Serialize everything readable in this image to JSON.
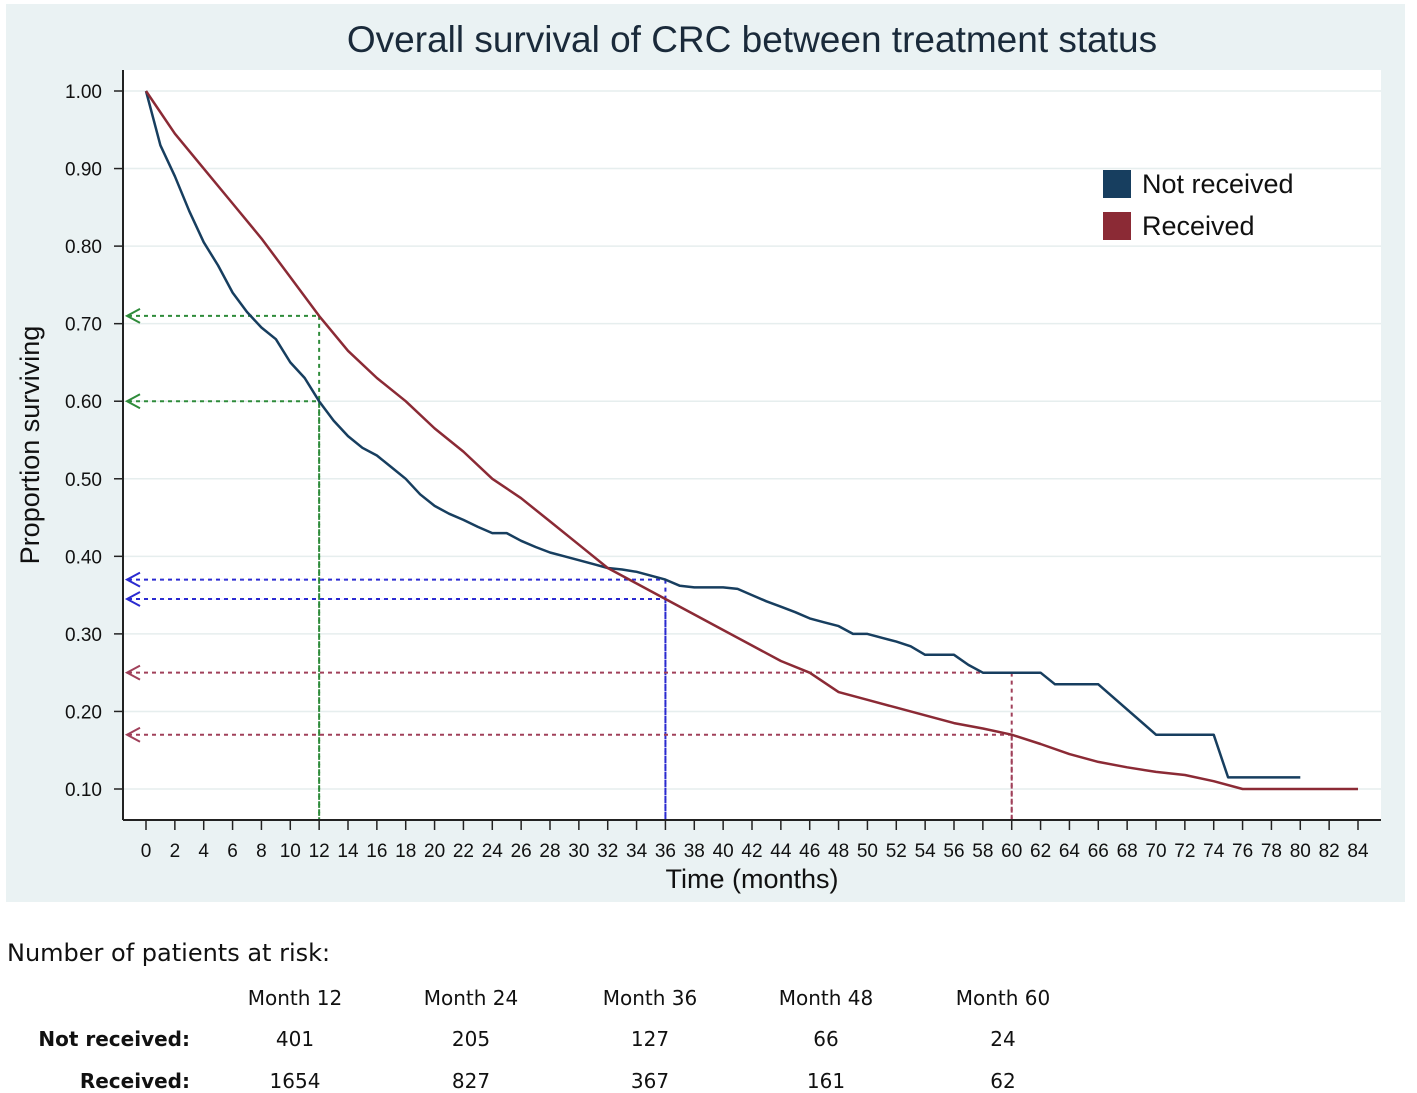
{
  "chart_data": {
    "type": "line",
    "title": "Overall survival of CRC between treatment status",
    "xlabel": "Time (months)",
    "ylabel": "Proportion surviving",
    "xlim": [
      0,
      84
    ],
    "ylim": [
      0.1,
      1.0
    ],
    "x_ticks": [
      0,
      2,
      4,
      6,
      8,
      10,
      12,
      14,
      16,
      18,
      20,
      22,
      24,
      26,
      28,
      30,
      32,
      34,
      36,
      38,
      40,
      42,
      44,
      46,
      48,
      50,
      52,
      54,
      56,
      58,
      60,
      62,
      64,
      66,
      68,
      70,
      72,
      74,
      76,
      78,
      80,
      82,
      84
    ],
    "y_ticks": [
      1.0,
      0.9,
      0.8,
      0.7,
      0.6,
      0.5,
      0.4,
      0.3,
      0.2,
      0.1
    ],
    "y_tick_labels": [
      "1.00",
      "0.90",
      "0.80",
      "0.70",
      "0.60",
      "0.50",
      "0.40",
      "0.30",
      "0.20",
      "0.10"
    ],
    "legend_position": "top-right",
    "series": [
      {
        "name": "Not received",
        "color": "#173e5f",
        "points": [
          [
            0,
            1.0
          ],
          [
            1,
            0.93
          ],
          [
            2,
            0.89
          ],
          [
            3,
            0.845
          ],
          [
            4,
            0.805
          ],
          [
            5,
            0.775
          ],
          [
            6,
            0.74
          ],
          [
            7,
            0.715
          ],
          [
            8,
            0.695
          ],
          [
            9,
            0.68
          ],
          [
            10,
            0.65
          ],
          [
            11,
            0.63
          ],
          [
            12,
            0.6
          ],
          [
            13,
            0.575
          ],
          [
            14,
            0.555
          ],
          [
            15,
            0.54
          ],
          [
            16,
            0.53
          ],
          [
            17,
            0.515
          ],
          [
            18,
            0.5
          ],
          [
            19,
            0.48
          ],
          [
            20,
            0.465
          ],
          [
            21,
            0.455
          ],
          [
            22,
            0.447
          ],
          [
            23,
            0.438
          ],
          [
            24,
            0.43
          ],
          [
            25,
            0.43
          ],
          [
            26,
            0.42
          ],
          [
            27,
            0.412
          ],
          [
            28,
            0.405
          ],
          [
            29,
            0.4
          ],
          [
            30,
            0.395
          ],
          [
            31,
            0.39
          ],
          [
            32,
            0.385
          ],
          [
            33,
            0.383
          ],
          [
            34,
            0.38
          ],
          [
            35,
            0.375
          ],
          [
            36,
            0.37
          ],
          [
            37,
            0.362
          ],
          [
            38,
            0.36
          ],
          [
            40,
            0.36
          ],
          [
            41,
            0.358
          ],
          [
            42,
            0.35
          ],
          [
            43,
            0.342
          ],
          [
            44,
            0.335
          ],
          [
            45,
            0.328
          ],
          [
            46,
            0.32
          ],
          [
            47,
            0.315
          ],
          [
            48,
            0.31
          ],
          [
            49,
            0.3
          ],
          [
            50,
            0.3
          ],
          [
            51,
            0.295
          ],
          [
            52,
            0.29
          ],
          [
            53,
            0.284
          ],
          [
            54,
            0.273
          ],
          [
            55,
            0.273
          ],
          [
            56,
            0.273
          ],
          [
            57,
            0.26
          ],
          [
            58,
            0.25
          ],
          [
            62,
            0.25
          ],
          [
            63,
            0.235
          ],
          [
            66,
            0.235
          ],
          [
            70,
            0.17
          ],
          [
            74,
            0.17
          ],
          [
            75,
            0.115
          ],
          [
            80,
            0.115
          ]
        ]
      },
      {
        "name": "Received",
        "color": "#8b2a35",
        "points": [
          [
            0,
            1.0
          ],
          [
            2,
            0.945
          ],
          [
            4,
            0.9
          ],
          [
            6,
            0.855
          ],
          [
            8,
            0.81
          ],
          [
            10,
            0.76
          ],
          [
            12,
            0.71
          ],
          [
            14,
            0.665
          ],
          [
            16,
            0.63
          ],
          [
            18,
            0.6
          ],
          [
            20,
            0.565
          ],
          [
            22,
            0.535
          ],
          [
            24,
            0.5
          ],
          [
            26,
            0.475
          ],
          [
            28,
            0.445
          ],
          [
            30,
            0.415
          ],
          [
            32,
            0.385
          ],
          [
            34,
            0.365
          ],
          [
            36,
            0.345
          ],
          [
            38,
            0.325
          ],
          [
            40,
            0.305
          ],
          [
            42,
            0.285
          ],
          [
            44,
            0.265
          ],
          [
            46,
            0.25
          ],
          [
            48,
            0.225
          ],
          [
            50,
            0.215
          ],
          [
            52,
            0.205
          ],
          [
            54,
            0.195
          ],
          [
            56,
            0.185
          ],
          [
            58,
            0.178
          ],
          [
            60,
            0.17
          ],
          [
            62,
            0.158
          ],
          [
            64,
            0.145
          ],
          [
            66,
            0.135
          ],
          [
            68,
            0.128
          ],
          [
            70,
            0.122
          ],
          [
            72,
            0.118
          ],
          [
            74,
            0.11
          ],
          [
            76,
            0.1
          ],
          [
            84,
            0.1
          ]
        ]
      }
    ],
    "annotations": [
      {
        "name": "Not received 12-month",
        "x": 12,
        "y": 0.6,
        "color": "#2e8b3a"
      },
      {
        "name": "Received 12-month",
        "x": 12,
        "y": 0.71,
        "color": "#2e8b3a"
      },
      {
        "name": "Not received 36-month",
        "x": 36,
        "y": 0.37,
        "color": "#2a2ad0"
      },
      {
        "name": "Received 36-month",
        "x": 36,
        "y": 0.345,
        "color": "#2a2ad0"
      },
      {
        "name": "Not received 60-month",
        "x": 60,
        "y": 0.25,
        "color": "#a0405a"
      },
      {
        "name": "Received 60-month",
        "x": 60,
        "y": 0.17,
        "color": "#a0405a"
      }
    ]
  },
  "risk_table": {
    "title": "Number of patients at risk:",
    "headers": [
      "Month 12",
      "Month 24",
      "Month 36",
      "Month 48",
      "Month 60"
    ],
    "rows": [
      {
        "label": "Not received:",
        "values": [
          "401",
          "205",
          "127",
          "66",
          "24"
        ]
      },
      {
        "label": "Received:",
        "values": [
          "1654",
          "827",
          "367",
          "161",
          "62"
        ]
      }
    ]
  }
}
